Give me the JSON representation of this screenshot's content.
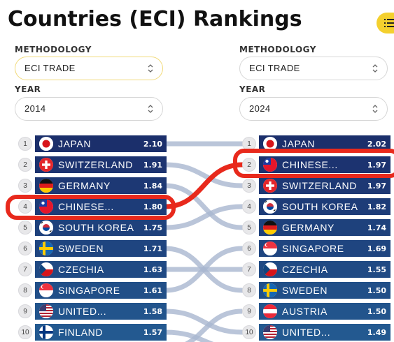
{
  "page": {
    "title": "Countries (ECI) Rankings"
  },
  "left": {
    "methodology_label": "METHODOLOGY",
    "methodology_value": "ECI TRADE",
    "year_label": "YEAR",
    "year_value": "2014",
    "rows": [
      {
        "rank": "1",
        "name": "JAPAN",
        "value": "2.10",
        "flag": "japan-flag-icon",
        "color": "#1b2f6b"
      },
      {
        "rank": "2",
        "name": "SWITZERLAND",
        "value": "1.91",
        "flag": "switzerland-flag-icon",
        "color": "#1c3370"
      },
      {
        "rank": "3",
        "name": "GERMANY",
        "value": "1.84",
        "flag": "germany-flag-icon",
        "color": "#1d3874"
      },
      {
        "rank": "4",
        "name": "CHINESE...",
        "value": "1.80",
        "flag": "chinese-taipei-flag-icon",
        "color": "#1d3c78"
      },
      {
        "rank": "5",
        "name": "SOUTH KOREA",
        "value": "1.75",
        "flag": "south-korea-flag-icon",
        "color": "#1e417c"
      },
      {
        "rank": "6",
        "name": "SWEDEN",
        "value": "1.71",
        "flag": "sweden-flag-icon",
        "color": "#1f4580"
      },
      {
        "rank": "7",
        "name": "CZECHIA",
        "value": "1.63",
        "flag": "czechia-flag-icon",
        "color": "#204a84"
      },
      {
        "rank": "8",
        "name": "SINGAPORE",
        "value": "1.61",
        "flag": "singapore-flag-icon",
        "color": "#214f88"
      },
      {
        "rank": "9",
        "name": "UNITED...",
        "value": "1.58",
        "flag": "united-states-flag-icon",
        "color": "#22548c"
      },
      {
        "rank": "10",
        "name": "FINLAND",
        "value": "1.57",
        "flag": "finland-flag-icon",
        "color": "#235990"
      }
    ]
  },
  "right": {
    "methodology_label": "METHODOLOGY",
    "methodology_value": "ECI TRADE",
    "year_label": "YEAR",
    "year_value": "2024",
    "rows": [
      {
        "rank": "1",
        "name": "JAPAN",
        "value": "2.02",
        "flag": "japan-flag-icon",
        "color": "#1b2f6b"
      },
      {
        "rank": "2",
        "name": "CHINESE...",
        "value": "1.97",
        "flag": "chinese-taipei-flag-icon",
        "color": "#1c3370"
      },
      {
        "rank": "3",
        "name": "SWITZERLAND",
        "value": "1.97",
        "flag": "switzerland-flag-icon",
        "color": "#1d3874"
      },
      {
        "rank": "4",
        "name": "SOUTH KOREA",
        "value": "1.82",
        "flag": "south-korea-flag-icon",
        "color": "#1d3c78"
      },
      {
        "rank": "5",
        "name": "GERMANY",
        "value": "1.74",
        "flag": "germany-flag-icon",
        "color": "#1e417c"
      },
      {
        "rank": "6",
        "name": "SINGAPORE",
        "value": "1.69",
        "flag": "singapore-flag-icon",
        "color": "#1f4580"
      },
      {
        "rank": "7",
        "name": "CZECHIA",
        "value": "1.55",
        "flag": "czechia-flag-icon",
        "color": "#204a84"
      },
      {
        "rank": "8",
        "name": "SWEDEN",
        "value": "1.50",
        "flag": "sweden-flag-icon",
        "color": "#214f88"
      },
      {
        "rank": "9",
        "name": "AUSTRIA",
        "value": "1.50",
        "flag": "austria-flag-icon",
        "color": "#22548c"
      },
      {
        "rank": "10",
        "name": "UNITED...",
        "value": "1.49",
        "flag": "united-states-flag-icon",
        "color": "#235990"
      }
    ]
  },
  "colors": {
    "highlight": "#e8291c",
    "link": "#a9b7cf",
    "accent": "#f4d02e"
  }
}
